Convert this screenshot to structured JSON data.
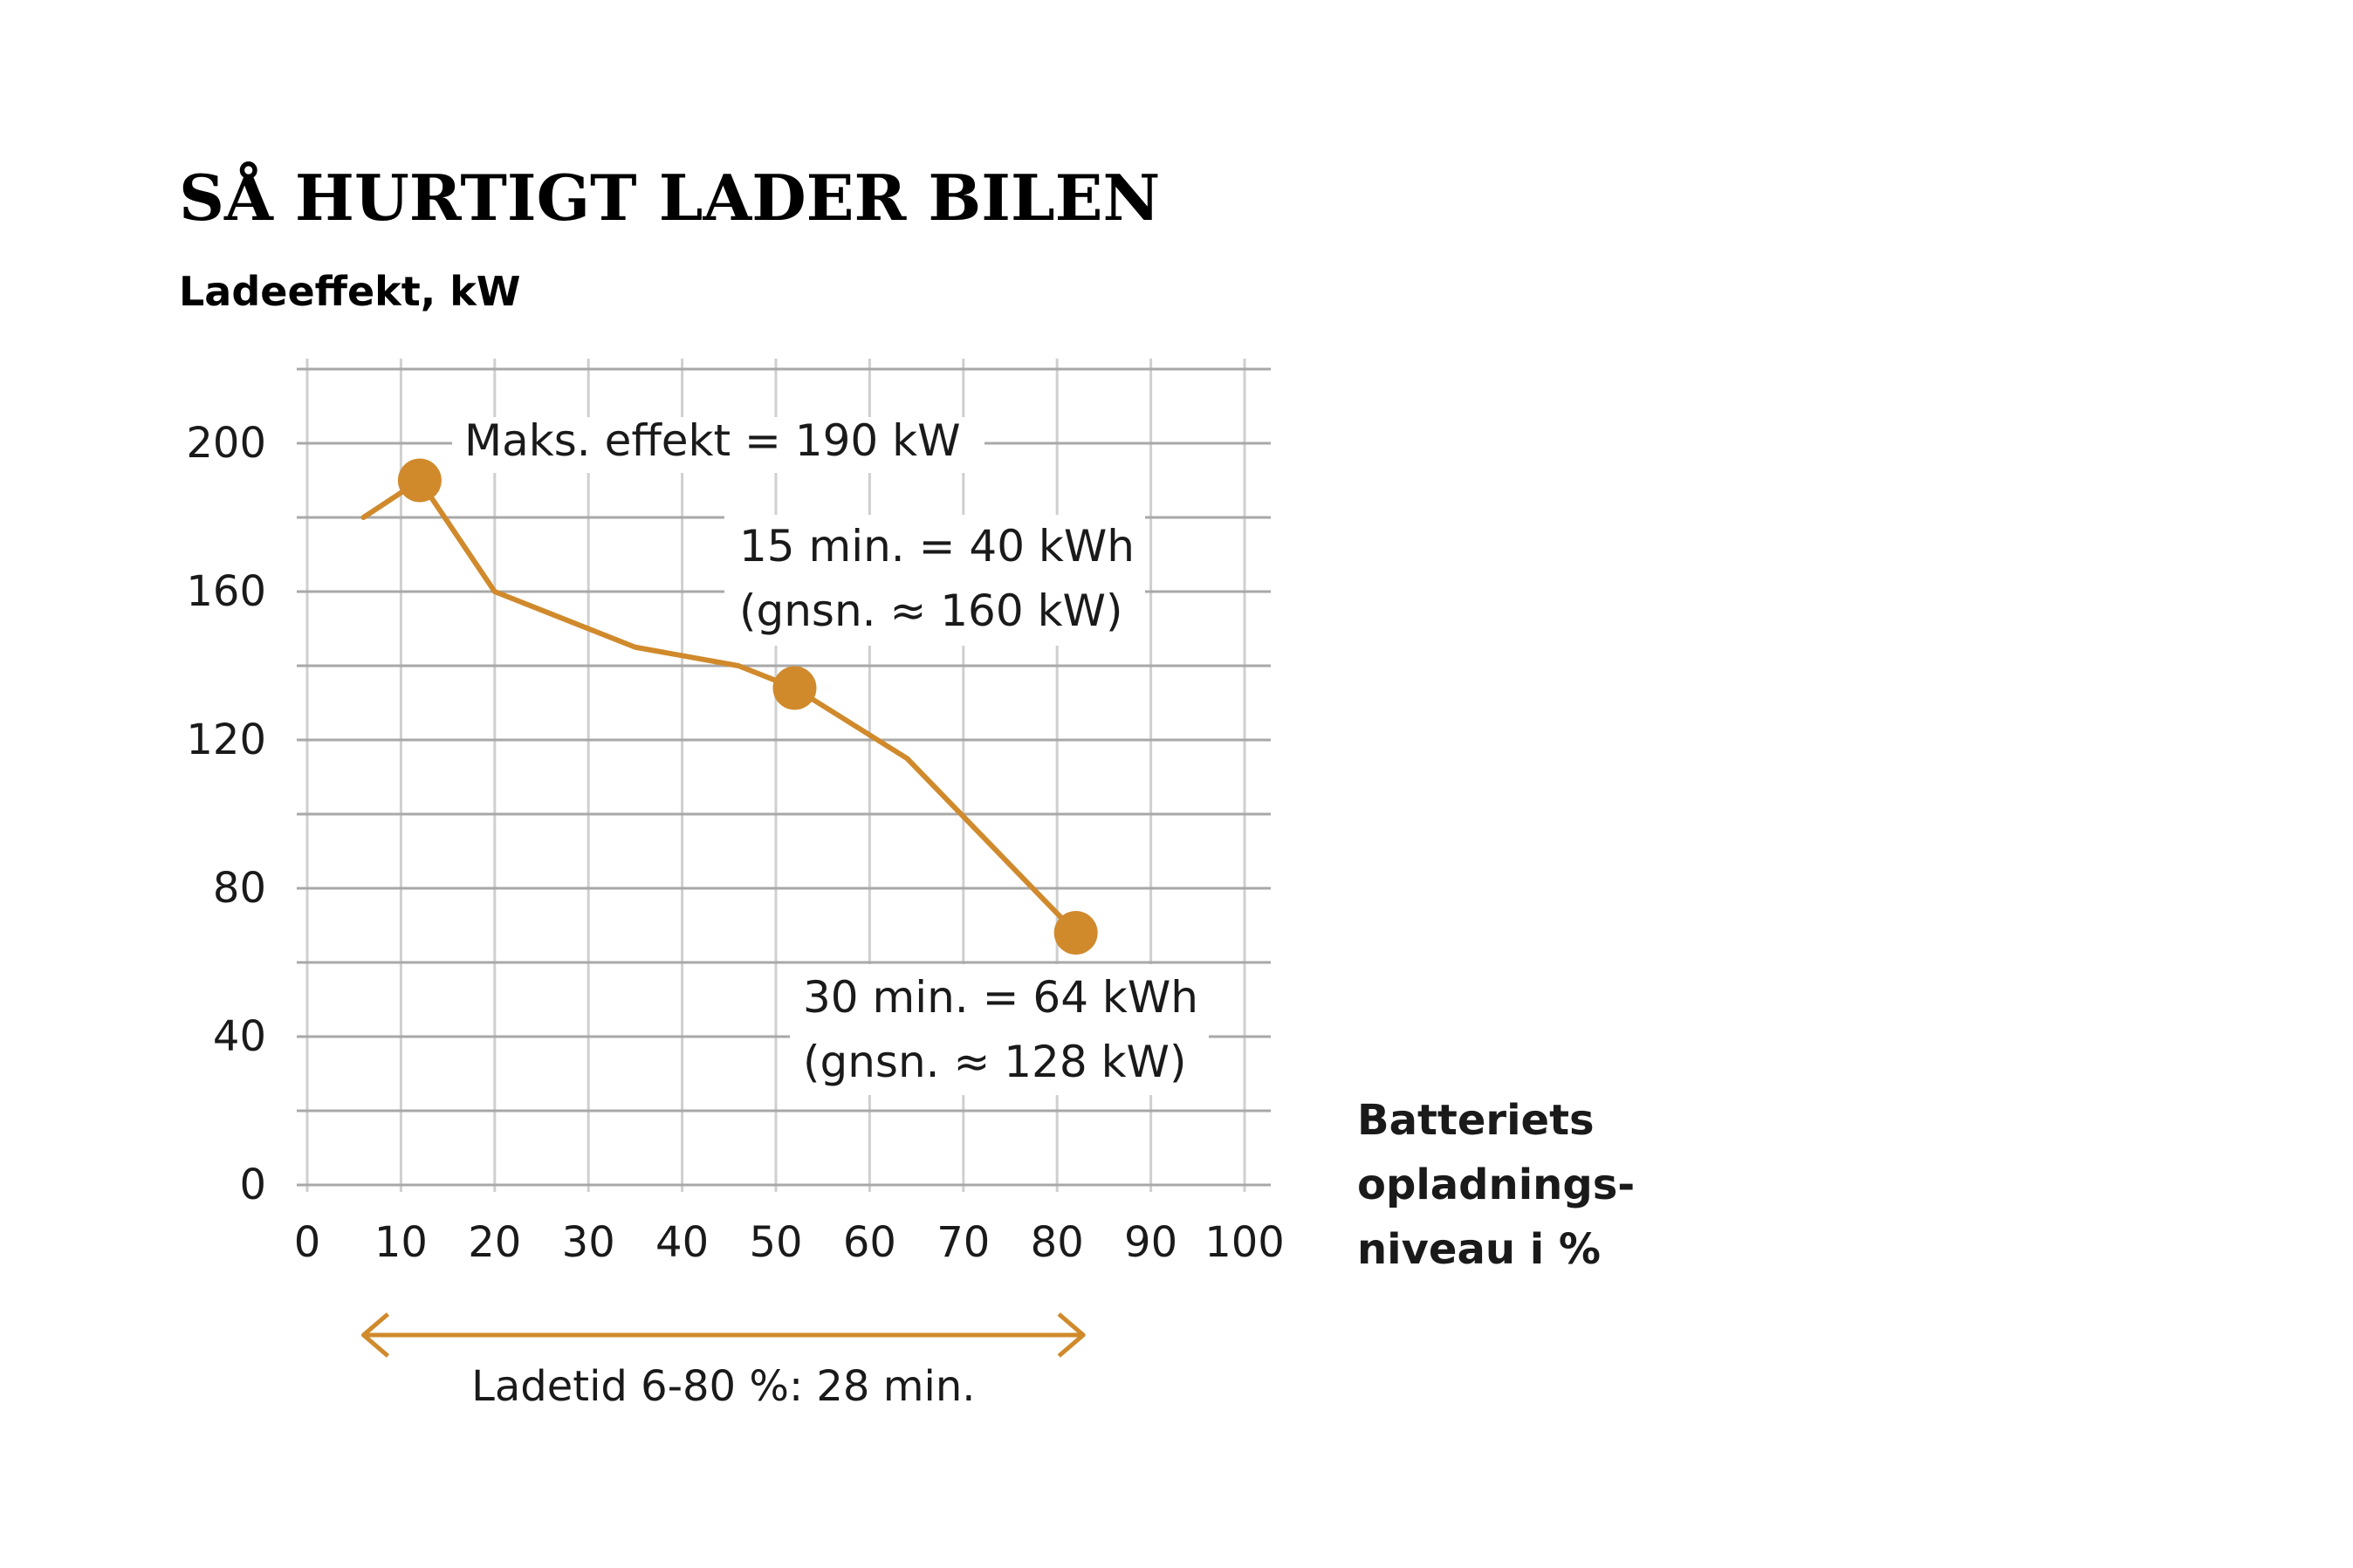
{
  "colors": {
    "accent": "#d08a2c",
    "grid": "#a8a8a8",
    "text": "#1a1a1a",
    "background": "#ffffff"
  },
  "chart_data": {
    "type": "line",
    "title": "SÅ HURTIGT LADER BILEN",
    "ylabel": "Ladeeffekt, kW",
    "xlabel_lines": [
      "Batteriets",
      "opladnings-",
      "niveau i %"
    ],
    "xlim": [
      0,
      100
    ],
    "ylim": [
      0,
      220
    ],
    "x_ticks": [
      0,
      10,
      20,
      30,
      40,
      50,
      60,
      70,
      80,
      90,
      100
    ],
    "y_ticks": [
      0,
      40,
      80,
      120,
      160,
      200
    ],
    "grid": true,
    "series": [
      {
        "x": [
          6,
          12,
          20,
          35,
          46,
          52,
          64,
          82
        ],
        "y": [
          180,
          190,
          160,
          145,
          140,
          134,
          115,
          68
        ]
      }
    ],
    "markers": [
      {
        "x": 12,
        "y": 190
      },
      {
        "x": 52,
        "y": 134
      },
      {
        "x": 82,
        "y": 68
      }
    ],
    "annotations": [
      {
        "lines": [
          "Maks. effekt = 190 kW"
        ]
      },
      {
        "lines": [
          "15 min. = 40 kWh",
          "(gnsn. ≈ 160 kW)"
        ]
      },
      {
        "lines": [
          "30 min. = 64 kWh",
          "(gnsn. ≈ 128 kW)"
        ]
      }
    ],
    "range_arrow": {
      "from": 6,
      "to": 80,
      "label": "Ladetid 6-80 %: 28 min."
    }
  }
}
